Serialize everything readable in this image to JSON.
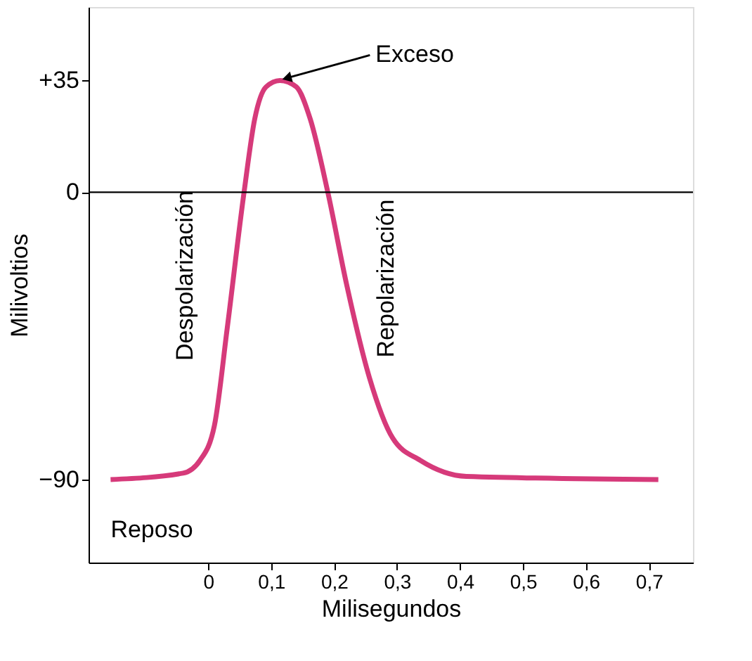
{
  "chart_data": {
    "type": "line",
    "xlabel": "Milisegundos",
    "ylabel": "Milivoltios",
    "x": [
      -0.155,
      -0.04,
      -0.013,
      0.01,
      0.03,
      0.057,
      0.074,
      0.092,
      0.114,
      0.14,
      0.162,
      0.19,
      0.22,
      0.256,
      0.293,
      0.337,
      0.41,
      0.715
    ],
    "series": [
      {
        "color": "#d63a7a",
        "values": [
          -90,
          -88,
          -84,
          -73,
          -43,
          0,
          23,
          33,
          35,
          33,
          23,
          0,
          -29,
          -58,
          -77,
          -84,
          -89,
          -90
        ]
      }
    ],
    "xlim": [
      -0.19,
      0.77
    ],
    "ylim": [
      -116,
      58
    ],
    "xticks": [
      0,
      {
        "value": 0.1,
        "label": "0,1"
      },
      {
        "value": 0.2,
        "label": "0,2"
      },
      {
        "value": 0.3,
        "label": "0,3"
      },
      {
        "value": 0.4,
        "label": "0,4"
      },
      {
        "value": 0.5,
        "label": "0,5"
      },
      {
        "value": 0.6,
        "label": "0,6"
      },
      {
        "value": 0.7,
        "label": "0,7"
      }
    ],
    "yticks": [
      {
        "value": 35,
        "label": "+35"
      },
      0,
      {
        "value": -90,
        "label": "−90"
      }
    ],
    "ref_lines": [
      {
        "axis": "y",
        "value": 0,
        "color": "#000000"
      }
    ],
    "annotations": [
      {
        "text": "Exceso",
        "x": 0.114,
        "y": 35
      },
      "Despolarización",
      "Repolarización",
      "Reposo"
    ],
    "grid": false,
    "legend": false,
    "marker": "none",
    "line_style": "solid"
  }
}
